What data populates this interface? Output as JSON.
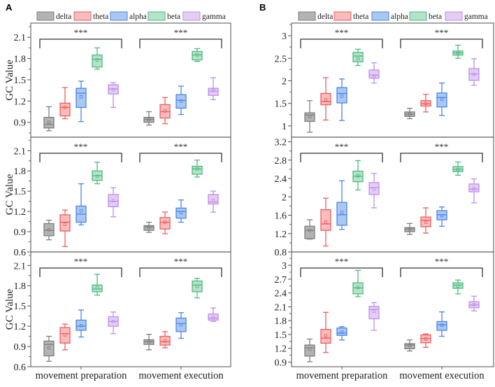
{
  "panel_labels": [
    "A",
    "B"
  ],
  "legend": [
    "delta",
    "theta",
    "alpha",
    "beta",
    "gamma"
  ],
  "colors": {
    "delta": {
      "stroke": "#7f7f7f",
      "fill": "#b3b3b3"
    },
    "theta": {
      "stroke": "#ef5d5d",
      "fill": "#f8bcbc"
    },
    "alpha": {
      "stroke": "#4a86e8",
      "fill": "#aac7f1"
    },
    "beta": {
      "stroke": "#4dbb80",
      "fill": "#b5e2c9"
    },
    "gamma": {
      "stroke": "#bf8ee9",
      "fill": "#e3cdf6"
    }
  },
  "ylabel": "GC Value",
  "significance": "***",
  "chart_data": [
    {
      "panel": "A",
      "row": 1,
      "type": "box",
      "ylabel": "GC Value",
      "categories": [
        "movement preparation",
        "movement execution"
      ],
      "ylim": [
        0.69,
        2.3
      ],
      "yticks": [
        0.9,
        1.2,
        1.5,
        1.8,
        2.1
      ],
      "stats_order": [
        "min",
        "q1",
        "median",
        "q3",
        "max",
        "mean"
      ],
      "series": {
        "delta": [
          [
            0.78,
            0.82,
            0.87,
            0.97,
            1.12,
            0.9
          ],
          [
            0.86,
            0.9,
            0.94,
            0.97,
            1.05,
            0.94
          ]
        ],
        "theta": [
          [
            0.95,
            0.99,
            1.11,
            1.17,
            1.39,
            1.11
          ],
          [
            0.88,
            0.96,
            1.05,
            1.15,
            1.25,
            1.06
          ]
        ],
        "alpha": [
          [
            0.91,
            1.11,
            1.31,
            1.38,
            1.48,
            1.26
          ],
          [
            1.01,
            1.1,
            1.21,
            1.29,
            1.41,
            1.2
          ]
        ],
        "beta": [
          [
            1.65,
            1.68,
            1.79,
            1.85,
            1.95,
            1.78
          ],
          [
            1.76,
            1.78,
            1.85,
            1.9,
            1.94,
            1.85
          ]
        ],
        "gamma": [
          [
            1.11,
            1.3,
            1.37,
            1.43,
            1.46,
            1.36
          ],
          [
            1.22,
            1.28,
            1.34,
            1.38,
            1.53,
            1.35
          ]
        ]
      }
    },
    {
      "panel": "A",
      "row": 2,
      "type": "box",
      "ylabel": "GC Value",
      "categories": [
        "movement preparation",
        "movement execution"
      ],
      "ylim": [
        0.6,
        2.3
      ],
      "yticks": [
        0.6,
        0.9,
        1.2,
        1.5,
        1.8,
        2.1
      ],
      "stats_order": [
        "min",
        "q1",
        "median",
        "q3",
        "max",
        "mean"
      ],
      "series": {
        "delta": [
          [
            0.78,
            0.84,
            0.92,
            1.02,
            1.07,
            0.93
          ],
          [
            0.89,
            0.92,
            0.97,
            0.99,
            1.04,
            0.96
          ]
        ],
        "theta": [
          [
            0.68,
            0.91,
            1.04,
            1.15,
            1.22,
            1.01
          ],
          [
            0.87,
            0.94,
            1.04,
            1.11,
            1.19,
            1.04
          ]
        ],
        "alpha": [
          [
            1.0,
            1.04,
            1.16,
            1.28,
            1.61,
            1.21
          ],
          [
            1.04,
            1.1,
            1.2,
            1.25,
            1.37,
            1.18
          ]
        ],
        "beta": [
          [
            1.61,
            1.66,
            1.73,
            1.8,
            1.93,
            1.72
          ],
          [
            1.71,
            1.75,
            1.83,
            1.87,
            1.96,
            1.83
          ]
        ],
        "gamma": [
          [
            1.12,
            1.27,
            1.35,
            1.45,
            1.55,
            1.36
          ],
          [
            1.19,
            1.31,
            1.34,
            1.45,
            1.5,
            1.36
          ]
        ]
      }
    },
    {
      "panel": "A",
      "row": 3,
      "type": "box",
      "ylabel": "GC Value",
      "categories": [
        "movement preparation",
        "movement execution"
      ],
      "ylim": [
        0.6,
        2.3
      ],
      "yticks": [
        0.6,
        0.9,
        1.2,
        1.5,
        1.8,
        2.1
      ],
      "stats_order": [
        "min",
        "q1",
        "median",
        "q3",
        "max",
        "mean"
      ],
      "series": {
        "delta": [
          [
            0.68,
            0.76,
            0.93,
            0.98,
            1.05,
            0.88
          ],
          [
            0.85,
            0.93,
            0.97,
            1.0,
            1.08,
            0.97
          ]
        ],
        "theta": [
          [
            0.85,
            0.95,
            1.09,
            1.18,
            1.23,
            1.07
          ],
          [
            0.88,
            0.92,
            0.97,
            1.05,
            1.12,
            0.98
          ]
        ],
        "alpha": [
          [
            1.04,
            1.14,
            1.2,
            1.29,
            1.44,
            1.21
          ],
          [
            1.02,
            1.12,
            1.24,
            1.32,
            1.4,
            1.22
          ]
        ],
        "beta": [
          [
            1.66,
            1.71,
            1.75,
            1.81,
            1.97,
            1.77
          ],
          [
            1.62,
            1.71,
            1.81,
            1.87,
            1.91,
            1.79
          ]
        ],
        "gamma": [
          [
            1.09,
            1.2,
            1.27,
            1.34,
            1.41,
            1.27
          ],
          [
            1.27,
            1.29,
            1.32,
            1.38,
            1.47,
            1.33
          ]
        ]
      }
    },
    {
      "panel": "B",
      "row": 1,
      "type": "box",
      "categories": [
        "movement preparation",
        "movement execution"
      ],
      "ylim": [
        0.75,
        3.28
      ],
      "yticks": [
        1.0,
        1.5,
        2.0,
        2.5,
        3.0
      ],
      "stats_order": [
        "min",
        "q1",
        "median",
        "q3",
        "max",
        "mean"
      ],
      "series": {
        "delta": [
          [
            0.86,
            1.1,
            1.24,
            1.29,
            1.56,
            1.21
          ],
          [
            1.16,
            1.21,
            1.26,
            1.31,
            1.39,
            1.26
          ]
        ],
        "theta": [
          [
            1.13,
            1.47,
            1.54,
            1.72,
            2.07,
            1.58
          ],
          [
            1.31,
            1.44,
            1.49,
            1.56,
            1.7,
            1.5
          ]
        ],
        "alpha": [
          [
            1.12,
            1.51,
            1.72,
            1.85,
            2.04,
            1.66
          ],
          [
            1.23,
            1.42,
            1.63,
            1.73,
            1.95,
            1.59
          ]
        ],
        "beta": [
          [
            2.34,
            2.42,
            2.55,
            2.63,
            2.7,
            2.49
          ],
          [
            2.5,
            2.57,
            2.62,
            2.66,
            2.79,
            2.61
          ]
        ],
        "gamma": [
          [
            1.95,
            2.06,
            2.13,
            2.24,
            2.4,
            2.08
          ],
          [
            1.9,
            2.01,
            2.15,
            2.27,
            2.49,
            2.14
          ]
        ]
      }
    },
    {
      "panel": "B",
      "row": 2,
      "type": "box",
      "categories": [
        "movement preparation",
        "movement execution"
      ],
      "ylim": [
        0.8,
        3.3
      ],
      "yticks": [
        0.8,
        1.2,
        1.6,
        2.0,
        2.4,
        2.8,
        3.2
      ],
      "stats_order": [
        "min",
        "q1",
        "median",
        "q3",
        "max",
        "mean"
      ],
      "series": {
        "delta": [
          [
            1.08,
            1.09,
            1.27,
            1.36,
            1.5,
            1.27
          ],
          [
            1.18,
            1.24,
            1.3,
            1.33,
            1.42,
            1.29
          ]
        ],
        "theta": [
          [
            0.93,
            1.27,
            1.41,
            1.72,
            1.97,
            1.45
          ],
          [
            1.21,
            1.35,
            1.49,
            1.56,
            1.76,
            1.45
          ]
        ],
        "alpha": [
          [
            1.29,
            1.38,
            1.61,
            1.88,
            2.35,
            1.66
          ],
          [
            1.36,
            1.5,
            1.61,
            1.7,
            1.78,
            1.59
          ]
        ],
        "beta": [
          [
            2.15,
            2.33,
            2.45,
            2.56,
            2.79,
            2.46
          ],
          [
            2.47,
            2.55,
            2.6,
            2.66,
            2.76,
            2.6
          ]
        ],
        "gamma": [
          [
            1.76,
            2.05,
            2.2,
            2.31,
            2.51,
            2.17
          ],
          [
            1.87,
            2.11,
            2.17,
            2.28,
            2.39,
            2.18
          ]
        ]
      }
    },
    {
      "panel": "B",
      "row": 3,
      "type": "box",
      "categories": [
        "movement preparation",
        "movement execution"
      ],
      "ylim": [
        0.8,
        3.29
      ],
      "yticks": [
        0.9,
        1.2,
        1.5,
        1.8,
        2.1,
        2.4,
        2.7,
        3.0
      ],
      "stats_order": [
        "min",
        "q1",
        "median",
        "q3",
        "max",
        "mean"
      ],
      "series": {
        "delta": [
          [
            0.91,
            1.03,
            1.21,
            1.27,
            1.4,
            1.18
          ],
          [
            1.14,
            1.19,
            1.27,
            1.3,
            1.38,
            1.26
          ]
        ],
        "theta": [
          [
            1.11,
            1.31,
            1.42,
            1.61,
            1.98,
            1.47
          ],
          [
            1.22,
            1.32,
            1.41,
            1.49,
            1.51,
            1.4
          ]
        ],
        "alpha": [
          [
            1.38,
            1.48,
            1.53,
            1.64,
            1.67,
            1.55
          ],
          [
            1.46,
            1.59,
            1.71,
            1.78,
            1.99,
            1.7
          ]
        ],
        "beta": [
          [
            2.32,
            2.38,
            2.51,
            2.62,
            2.89,
            2.52
          ],
          [
            2.38,
            2.5,
            2.57,
            2.62,
            2.68,
            2.55
          ]
        ],
        "gamma": [
          [
            1.59,
            1.84,
            2.04,
            2.11,
            2.19,
            2.0
          ],
          [
            2.01,
            2.08,
            2.14,
            2.21,
            2.33,
            2.15
          ]
        ]
      }
    }
  ]
}
